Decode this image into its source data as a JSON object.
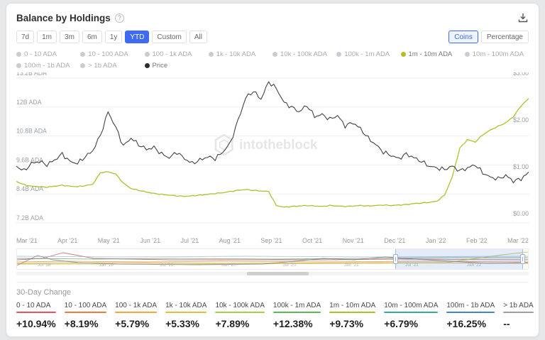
{
  "header": {
    "title": "Balance by Holdings",
    "help_label": "?"
  },
  "toolbar": {
    "ranges": [
      {
        "label": "7d",
        "active": false
      },
      {
        "label": "1m",
        "active": false
      },
      {
        "label": "3m",
        "active": false
      },
      {
        "label": "6m",
        "active": false
      },
      {
        "label": "1y",
        "active": false
      },
      {
        "label": "YTD",
        "active": true
      },
      {
        "label": "Custom",
        "active": false
      },
      {
        "label": "All",
        "active": false
      }
    ],
    "unit_toggle": [
      {
        "label": "Coins",
        "active": true
      },
      {
        "label": "Percentage",
        "active": false
      }
    ]
  },
  "legend": {
    "items": [
      {
        "label": "0 - 10 ADA",
        "color": "#c9cdd3",
        "active": false
      },
      {
        "label": "10 - 100 ADA",
        "color": "#c9cdd3",
        "active": false
      },
      {
        "label": "100 - 1k ADA",
        "color": "#c9cdd3",
        "active": false
      },
      {
        "label": "1k - 10k ADA",
        "color": "#c9cdd3",
        "active": false
      },
      {
        "label": "10k - 100k ADA",
        "color": "#c9cdd3",
        "active": false
      },
      {
        "label": "100k - 1m ADA",
        "color": "#c9cdd3",
        "active": false
      },
      {
        "label": "1m - 10m ADA",
        "color": "#b2bf2a",
        "active": true
      },
      {
        "label": "10m - 100m ADA",
        "color": "#c9cdd3",
        "active": false
      },
      {
        "label": "100m - 1b ADA",
        "color": "#c9cdd3",
        "active": false
      },
      {
        "label": "> 1b ADA",
        "color": "#c9cdd3",
        "active": false
      },
      {
        "label": "Price",
        "color": "#2b2b2b",
        "active": true
      }
    ]
  },
  "watermark": {
    "text": "intotheblock"
  },
  "chart_data": {
    "type": "line",
    "title": "Balance by Holdings",
    "x_ticks": [
      "Mar '21",
      "Apr '21",
      "May '21",
      "Jun '21",
      "Jul '21",
      "Aug '21",
      "Sep '21",
      "Oct '21",
      "Nov '21",
      "Dec '21",
      "Jan '22",
      "Feb '22",
      "Mar '22"
    ],
    "left_axis": {
      "labels": [
        "13.2B ADA",
        "12B ADA",
        "10.8B ADA",
        "9.6B ADA",
        "8.4B ADA",
        "7.2B ADA"
      ],
      "ticks": [
        13.2,
        12,
        10.8,
        9.6,
        8.4,
        7.2
      ],
      "min": 7.2,
      "max": 13.2,
      "unit": "B ADA"
    },
    "right_axis": {
      "labels": [
        "$3.00",
        "$2.00",
        "$1.00",
        "$0.00"
      ],
      "ticks": [
        3,
        2,
        1,
        0
      ],
      "min": 0,
      "max": 3,
      "unit": "USD"
    },
    "grid": true,
    "legend_position": "top",
    "series": [
      {
        "name": "1m - 10m ADA",
        "color": "#b2bf2a",
        "axis": "left",
        "values": [
          8.92,
          8.78,
          8.72,
          8.7,
          8.68,
          8.72,
          8.76,
          8.72,
          8.7,
          8.74,
          8.8,
          9.28,
          9.32,
          9.22,
          8.85,
          8.62,
          8.55,
          8.48,
          8.42,
          8.38,
          8.35,
          8.32,
          8.3,
          8.32,
          8.35,
          8.38,
          8.42,
          8.45,
          8.5,
          8.55,
          8.58,
          8.55,
          8.52,
          8.5,
          7.92,
          7.85,
          7.88,
          7.9,
          7.92,
          7.9,
          7.88,
          7.92,
          7.9,
          7.88,
          7.9,
          7.92,
          7.9,
          7.92,
          7.94,
          7.92,
          7.94,
          7.96,
          8.0,
          8.02,
          8.05,
          8.1,
          8.35,
          9.1,
          10.3,
          10.65,
          10.55,
          10.85,
          11.05,
          11.2,
          11.35,
          11.6,
          12.05,
          12.35
        ]
      },
      {
        "name": "Price",
        "color": "#3f3f3f",
        "axis": "right",
        "values": [
          1.12,
          1.02,
          1.18,
          1.22,
          1.15,
          1.25,
          1.38,
          1.22,
          1.18,
          1.32,
          1.45,
          1.78,
          2.28,
          1.95,
          1.55,
          1.72,
          1.58,
          1.48,
          1.52,
          1.38,
          1.3,
          1.42,
          1.28,
          1.18,
          1.25,
          1.32,
          1.28,
          1.42,
          1.62,
          2.1,
          2.58,
          2.72,
          2.55,
          2.92,
          2.78,
          2.48,
          2.38,
          2.28,
          2.42,
          2.18,
          2.22,
          2.12,
          2.2,
          1.98,
          2.05,
          1.92,
          1.72,
          1.58,
          1.42,
          1.35,
          1.28,
          1.38,
          1.3,
          1.22,
          1.12,
          1.08,
          1.05,
          1.12,
          1.02,
          1.08,
          1.15,
          0.98,
          0.88,
          0.85,
          0.92,
          0.8,
          0.85,
          0.98
        ]
      }
    ]
  },
  "navigator": {
    "tick_labels": [
      "Jul '18",
      "Jan '19",
      "Jul '19",
      "Jan '20",
      "Jul '20",
      "Jan '21",
      "Jul '21",
      "Jan '22"
    ],
    "tick_positions_pct": [
      4,
      16,
      28,
      40,
      52,
      64,
      76,
      88
    ],
    "selection": {
      "start_pct": 74,
      "end_pct": 99
    },
    "lines": [
      {
        "color": "#c94a4a",
        "pts": [
          [
            0,
            15
          ],
          [
            5,
            13
          ],
          [
            9,
            5
          ],
          [
            12,
            9
          ],
          [
            15,
            13
          ],
          [
            22,
            14
          ],
          [
            30,
            15
          ],
          [
            45,
            15
          ],
          [
            60,
            15
          ],
          [
            75,
            14
          ],
          [
            100,
            15
          ]
        ]
      },
      {
        "color": "#e8893f",
        "pts": [
          [
            0,
            18
          ],
          [
            10,
            17
          ],
          [
            25,
            18
          ],
          [
            40,
            17
          ],
          [
            60,
            18
          ],
          [
            80,
            17
          ],
          [
            100,
            18
          ]
        ]
      },
      {
        "color": "#caa43b",
        "pts": [
          [
            0,
            20
          ],
          [
            20,
            19
          ],
          [
            40,
            20
          ],
          [
            70,
            19
          ],
          [
            100,
            20
          ]
        ]
      },
      {
        "color": "#58a46a",
        "pts": [
          [
            0,
            13
          ],
          [
            15,
            14
          ],
          [
            30,
            13
          ],
          [
            50,
            14
          ],
          [
            70,
            13
          ],
          [
            85,
            12
          ],
          [
            100,
            12
          ]
        ]
      },
      {
        "color": "#b2bf2a",
        "pts": [
          [
            0,
            21
          ],
          [
            40,
            21
          ],
          [
            70,
            20
          ],
          [
            84,
            19
          ],
          [
            90,
            13
          ],
          [
            95,
            8
          ],
          [
            100,
            4
          ]
        ]
      },
      {
        "color": "#9fb6d4",
        "pts": [
          [
            0,
            10
          ],
          [
            20,
            11
          ],
          [
            45,
            10
          ],
          [
            70,
            11
          ],
          [
            100,
            10
          ]
        ]
      },
      {
        "color": "#7a7a7a",
        "pts": [
          [
            0,
            23
          ],
          [
            4,
            9
          ],
          [
            7,
            15
          ],
          [
            12,
            19
          ],
          [
            20,
            21
          ],
          [
            35,
            22
          ],
          [
            48,
            21
          ],
          [
            56,
            16
          ],
          [
            60,
            13
          ],
          [
            66,
            15
          ],
          [
            72,
            11
          ],
          [
            78,
            14
          ],
          [
            85,
            17
          ],
          [
            92,
            20
          ],
          [
            100,
            19
          ]
        ]
      }
    ]
  },
  "change_30d": {
    "title": "30-Day Change",
    "items": [
      {
        "label": "0 - 10 ADA",
        "value": "+10.94%",
        "color": "#e25562"
      },
      {
        "label": "10 - 100 ADA",
        "value": "+8.19%",
        "color": "#ec7a45"
      },
      {
        "label": "100 - 1k ADA",
        "value": "+5.79%",
        "color": "#f3a93a"
      },
      {
        "label": "1k - 10k ADA",
        "value": "+5.33%",
        "color": "#e0c23a"
      },
      {
        "label": "10k - 100k ADA",
        "value": "+7.89%",
        "color": "#a8ce4f"
      },
      {
        "label": "100k - 1m ADA",
        "value": "+12.38%",
        "color": "#5cb85c"
      },
      {
        "label": "1m - 10m ADA",
        "value": "+9.73%",
        "color": "#b2bf2a"
      },
      {
        "label": "10m - 100m ADA",
        "value": "+6.79%",
        "color": "#3aa9a0"
      },
      {
        "label": "100m - 1b ADA",
        "value": "+16.25%",
        "color": "#4285c8"
      },
      {
        "label": "> 1b ADA",
        "value": "--",
        "color": "#9e9ea4"
      }
    ]
  }
}
